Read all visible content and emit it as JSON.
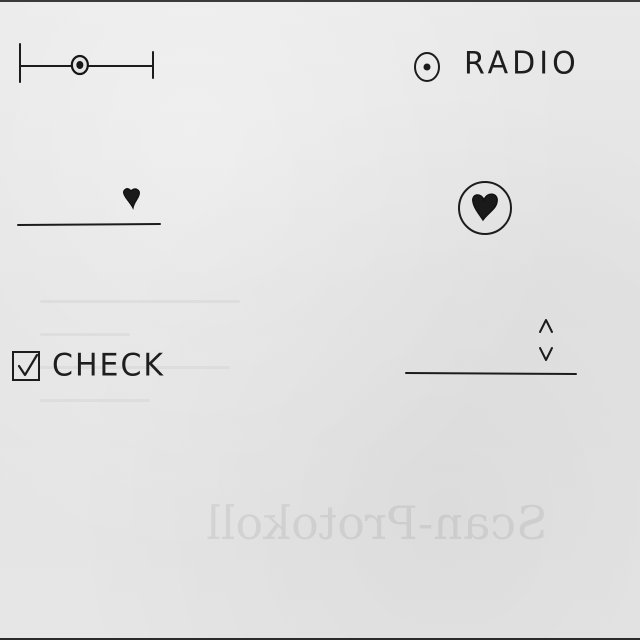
{
  "widgets": {
    "slider": {
      "value": 0.45
    },
    "radio": {
      "label": "RADIO",
      "selected": true
    },
    "text_field_cursor": {
      "icon": "heart-cursor-icon"
    },
    "heart_button": {
      "icon": "heart-icon"
    },
    "checkbox": {
      "label": "CHECK",
      "checked": true
    },
    "spinner": {
      "icon": "up-down-arrows-icon"
    }
  },
  "colors": {
    "ink": "#1c1c1c",
    "paper": "#e6e6e6"
  }
}
